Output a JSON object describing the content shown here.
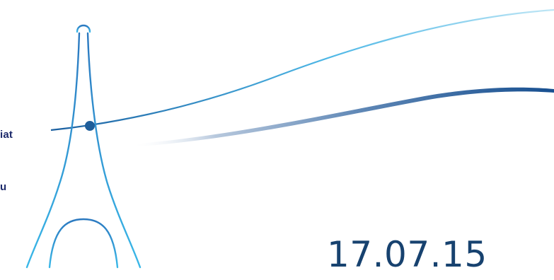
{
  "slide": {
    "side_text_1": "iat",
    "side_text_2": "u",
    "date": "17.07.15"
  },
  "colors": {
    "tower_stroke": "#2aa4de",
    "swoosh_light": "#9fd9ee",
    "swoosh_dark": "#1b4f8f",
    "dot": "#1f5e9a",
    "text": "#1d2a6b",
    "date_text": "#17426f"
  },
  "icons": {
    "logo": "eiffel-tower-swoosh-logo"
  }
}
